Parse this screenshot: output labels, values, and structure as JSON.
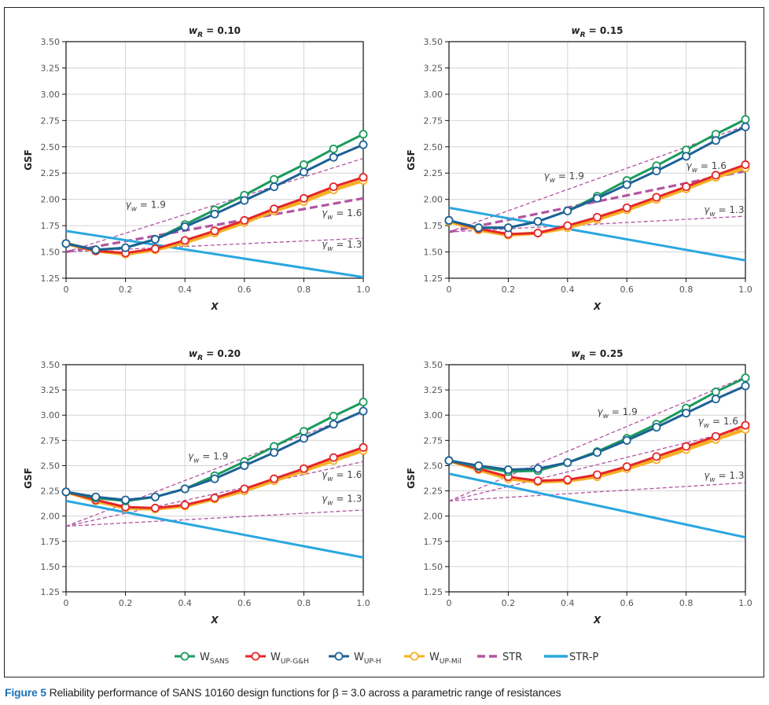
{
  "caption": {
    "figure_number": "Figure 5",
    "text": "Reliability performance of SANS 10160 design functions for β = 3.0 across a parametric range of resistances"
  },
  "colors": {
    "W_SANS": "#1a9a5c",
    "W_UP-G&H": "#e3262b",
    "W_UP-H": "#1d6196",
    "W_UP-Mil": "#f5b024",
    "STR": "#b155a2",
    "STR-P": "#2aa7e0"
  },
  "legend": [
    {
      "key": "W_SANS",
      "main": "W",
      "sub": "SANS",
      "style": "line-marker"
    },
    {
      "key": "W_UP-G&H",
      "main": "W",
      "sub": "UP-G&H",
      "style": "line-marker"
    },
    {
      "key": "W_UP-H",
      "main": "W",
      "sub": "UP-H",
      "style": "line-marker"
    },
    {
      "key": "W_UP-Mil",
      "main": "W",
      "sub": "UP-Mil",
      "style": "line-marker"
    },
    {
      "key": "STR",
      "main": "STR",
      "sub": "",
      "style": "dashed"
    },
    {
      "key": "STR-P",
      "main": "STR-P",
      "sub": "",
      "style": "solid"
    }
  ],
  "chart_data": [
    {
      "type": "line",
      "title": "w_R = 0.10",
      "title_main": "w",
      "title_sub": "R",
      "title_rest": " = 0.10",
      "xlabel": "X",
      "ylabel": "GSF",
      "xlim": [
        0,
        1.0
      ],
      "ylim": [
        1.25,
        3.5
      ],
      "xticks": [
        "0",
        "0.2",
        "0.4",
        "0.6",
        "0.8",
        "1.0"
      ],
      "yticks": [
        "1.25",
        "1.50",
        "1.75",
        "2.00",
        "2.25",
        "2.50",
        "2.75",
        "3.00",
        "3.25",
        "3.50"
      ],
      "grid": true,
      "x": [
        0,
        0.1,
        0.2,
        0.3,
        0.4,
        0.5,
        0.6,
        0.7,
        0.8,
        0.9,
        1.0
      ],
      "series": [
        {
          "name": "W_SANS",
          "values": [
            1.58,
            1.52,
            1.54,
            1.62,
            1.76,
            1.9,
            2.04,
            2.19,
            2.33,
            2.48,
            2.62
          ]
        },
        {
          "name": "W_UP-H",
          "values": [
            1.58,
            1.52,
            1.54,
            1.62,
            1.74,
            1.86,
            1.99,
            2.12,
            2.26,
            2.4,
            2.52
          ]
        },
        {
          "name": "W_UP-G&H",
          "values": [
            1.58,
            1.51,
            1.49,
            1.53,
            1.61,
            1.7,
            1.8,
            1.91,
            2.01,
            2.12,
            2.21
          ]
        },
        {
          "name": "W_UP-Mil",
          "values": [
            1.58,
            1.51,
            1.48,
            1.52,
            1.59,
            1.68,
            1.78,
            1.89,
            1.98,
            2.09,
            2.18
          ]
        }
      ],
      "str_lines": [
        {
          "gamma_label": "1.9",
          "x": [
            0,
            1.0
          ],
          "values": [
            1.5,
            2.39
          ],
          "label_pos": [
            0.2,
            1.92
          ]
        },
        {
          "gamma_label": "1.6",
          "x": [
            0,
            1.0
          ],
          "values": [
            1.5,
            2.01
          ],
          "label_pos": [
            0.86,
            1.84
          ],
          "bold": true
        },
        {
          "gamma_label": "1.3",
          "x": [
            0,
            1.0
          ],
          "values": [
            1.5,
            1.63
          ],
          "label_pos": [
            0.86,
            1.54
          ]
        }
      ],
      "str_p": {
        "x": [
          0,
          1.0
        ],
        "values": [
          1.7,
          1.26
        ]
      }
    },
    {
      "type": "line",
      "title": "w_R = 0.15",
      "title_main": "w",
      "title_sub": "R",
      "title_rest": " = 0.15",
      "xlabel": "X",
      "ylabel": "GSF",
      "xlim": [
        0,
        1.0
      ],
      "ylim": [
        1.25,
        3.5
      ],
      "xticks": [
        "0",
        "0.2",
        "0.4",
        "0.6",
        "0.8",
        "1.0"
      ],
      "yticks": [
        "1.25",
        "1.50",
        "1.75",
        "2.00",
        "2.25",
        "2.50",
        "2.75",
        "3.00",
        "3.25",
        "3.50"
      ],
      "grid": true,
      "x": [
        0,
        0.1,
        0.2,
        0.3,
        0.4,
        0.5,
        0.6,
        0.7,
        0.8,
        0.9,
        1.0
      ],
      "series": [
        {
          "name": "W_SANS",
          "values": [
            1.8,
            1.73,
            1.73,
            1.79,
            1.89,
            2.03,
            2.18,
            2.32,
            2.47,
            2.62,
            2.76
          ]
        },
        {
          "name": "W_UP-H",
          "values": [
            1.8,
            1.73,
            1.73,
            1.79,
            1.89,
            2.01,
            2.14,
            2.27,
            2.41,
            2.56,
            2.69
          ]
        },
        {
          "name": "W_UP-G&H",
          "values": [
            1.8,
            1.72,
            1.67,
            1.68,
            1.75,
            1.83,
            1.92,
            2.02,
            2.12,
            2.23,
            2.33
          ]
        },
        {
          "name": "W_UP-Mil",
          "values": [
            1.79,
            1.71,
            1.66,
            1.68,
            1.73,
            1.81,
            1.9,
            2.0,
            2.1,
            2.21,
            2.3
          ]
        }
      ],
      "str_lines": [
        {
          "gamma_label": "1.9",
          "x": [
            0,
            1.0
          ],
          "values": [
            1.69,
            2.7
          ],
          "label_pos": [
            0.32,
            2.19
          ]
        },
        {
          "gamma_label": "1.6",
          "x": [
            0,
            1.0
          ],
          "values": [
            1.69,
            2.27
          ],
          "label_pos": [
            0.8,
            2.29
          ],
          "bold": true
        },
        {
          "gamma_label": "1.3",
          "x": [
            0,
            1.0
          ],
          "values": [
            1.69,
            1.84
          ],
          "label_pos": [
            0.86,
            1.87
          ]
        }
      ],
      "str_p": {
        "x": [
          0,
          1.0
        ],
        "values": [
          1.92,
          1.42
        ]
      }
    },
    {
      "type": "line",
      "title": "w_R = 0.20",
      "title_main": "w",
      "title_sub": "R",
      "title_rest": " = 0.20",
      "xlabel": "X",
      "ylabel": "GSF",
      "xlim": [
        0,
        1.0
      ],
      "ylim": [
        1.25,
        3.5
      ],
      "xticks": [
        "0",
        "0.2",
        "0.4",
        "0.6",
        "0.8",
        "1.0"
      ],
      "yticks": [
        "1.25",
        "1.50",
        "1.75",
        "2.00",
        "2.25",
        "2.50",
        "2.75",
        "3.00",
        "3.25",
        "3.50"
      ],
      "grid": true,
      "x": [
        0,
        0.1,
        0.2,
        0.3,
        0.4,
        0.5,
        0.6,
        0.7,
        0.8,
        0.9,
        1.0
      ],
      "series": [
        {
          "name": "W_SANS",
          "values": [
            2.24,
            2.18,
            2.15,
            2.19,
            2.27,
            2.4,
            2.54,
            2.69,
            2.84,
            2.99,
            3.13
          ]
        },
        {
          "name": "W_UP-H",
          "values": [
            2.24,
            2.19,
            2.16,
            2.19,
            2.27,
            2.37,
            2.5,
            2.63,
            2.77,
            2.91,
            3.04
          ]
        },
        {
          "name": "W_UP-G&H",
          "values": [
            2.24,
            2.16,
            2.09,
            2.08,
            2.11,
            2.18,
            2.27,
            2.37,
            2.47,
            2.58,
            2.68
          ]
        },
        {
          "name": "W_UP-Mil",
          "values": [
            2.24,
            2.15,
            2.08,
            2.07,
            2.1,
            2.17,
            2.25,
            2.35,
            2.45,
            2.55,
            2.65
          ]
        }
      ],
      "str_lines": [
        {
          "gamma_label": "1.9",
          "x": [
            0,
            1.0
          ],
          "values": [
            1.9,
            3.03
          ],
          "label_pos": [
            0.41,
            2.56
          ]
        },
        {
          "gamma_label": "1.6",
          "x": [
            0,
            1.0
          ],
          "values": [
            1.9,
            2.54
          ],
          "label_pos": [
            0.86,
            2.38
          ]
        },
        {
          "gamma_label": "1.3",
          "x": [
            0,
            1.0
          ],
          "values": [
            1.9,
            2.06
          ],
          "label_pos": [
            0.86,
            2.14
          ]
        }
      ],
      "str_p": {
        "x": [
          0,
          1.0
        ],
        "values": [
          2.15,
          1.59
        ]
      }
    },
    {
      "type": "line",
      "title": "w_R = 0.25",
      "title_main": "w",
      "title_sub": "R",
      "title_rest": " = 0.25",
      "xlabel": "X",
      "ylabel": "GSF",
      "xlim": [
        0,
        1.0
      ],
      "ylim": [
        1.25,
        3.5
      ],
      "xticks": [
        "0",
        "0.2",
        "0.4",
        "0.6",
        "0.8",
        "1.0"
      ],
      "yticks": [
        "1.25",
        "1.50",
        "1.75",
        "2.00",
        "2.25",
        "2.50",
        "2.75",
        "3.00",
        "3.25",
        "3.50"
      ],
      "grid": true,
      "x": [
        0,
        0.1,
        0.2,
        0.3,
        0.4,
        0.5,
        0.6,
        0.7,
        0.8,
        0.9,
        1.0
      ],
      "series": [
        {
          "name": "W_SANS",
          "values": [
            2.55,
            2.49,
            2.44,
            2.45,
            2.53,
            2.64,
            2.77,
            2.91,
            3.07,
            3.23,
            3.37
          ]
        },
        {
          "name": "W_UP-H",
          "values": [
            2.55,
            2.5,
            2.46,
            2.47,
            2.53,
            2.63,
            2.75,
            2.88,
            3.02,
            3.16,
            3.29
          ]
        },
        {
          "name": "W_UP-G&H",
          "values": [
            2.55,
            2.47,
            2.39,
            2.35,
            2.36,
            2.41,
            2.49,
            2.59,
            2.69,
            2.79,
            2.9
          ]
        },
        {
          "name": "W_UP-Mil",
          "values": [
            2.55,
            2.46,
            2.37,
            2.34,
            2.35,
            2.39,
            2.47,
            2.56,
            2.66,
            2.76,
            2.86
          ]
        }
      ],
      "str_lines": [
        {
          "gamma_label": "1.9",
          "x": [
            0,
            1.0
          ],
          "values": [
            2.15,
            3.38
          ],
          "label_pos": [
            0.5,
            3.0
          ]
        },
        {
          "gamma_label": "1.6",
          "x": [
            0,
            1.0
          ],
          "values": [
            2.15,
            2.87
          ],
          "label_pos": [
            0.84,
            2.91
          ]
        },
        {
          "gamma_label": "1.3",
          "x": [
            0,
            1.0
          ],
          "values": [
            2.15,
            2.33
          ],
          "label_pos": [
            0.86,
            2.37
          ]
        }
      ],
      "str_p": {
        "x": [
          0,
          1.0
        ],
        "values": [
          2.42,
          1.79
        ]
      }
    }
  ]
}
